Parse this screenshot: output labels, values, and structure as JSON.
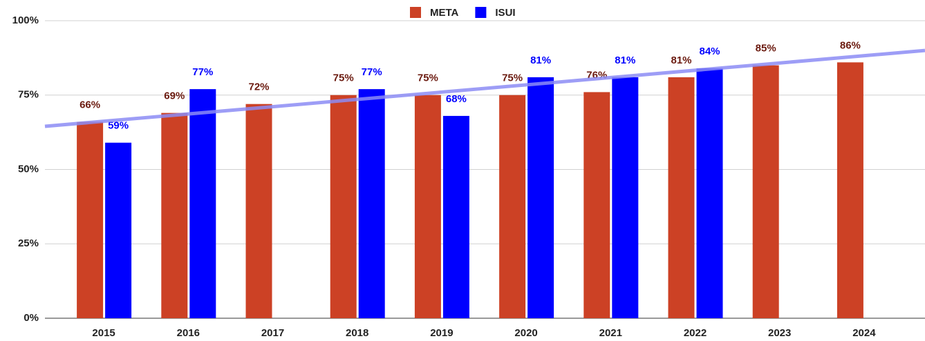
{
  "chart_data": {
    "type": "bar",
    "categories": [
      "2015",
      "2016",
      "2017",
      "2018",
      "2019",
      "2020",
      "2021",
      "2022",
      "2023",
      "2024"
    ],
    "series": [
      {
        "name": "META",
        "color": "#cc4125",
        "label_color": "#6b1a0f",
        "values": [
          66,
          69,
          72,
          75,
          75,
          75,
          76,
          81,
          85,
          86
        ],
        "value_labels": [
          "66%",
          "69%",
          "72%",
          "75%",
          "75%",
          "75%",
          "76%",
          "81%",
          "85%",
          "86%"
        ]
      },
      {
        "name": "ISUI",
        "color": "#0000ff",
        "label_color": "#0000ff",
        "values": [
          59,
          77,
          null,
          77,
          68,
          81,
          81,
          84,
          null,
          null
        ],
        "value_labels": [
          "59%",
          "77%",
          null,
          "77%",
          "68%",
          "81%",
          "81%",
          "84%",
          null,
          null
        ]
      }
    ],
    "trendline": {
      "color": "#8c8cf5",
      "values": [
        64.5,
        90
      ]
    },
    "ylim": [
      0,
      100
    ],
    "yticks": [
      {
        "value": 0,
        "label": "0%"
      },
      {
        "value": 25,
        "label": "25%"
      },
      {
        "value": 50,
        "label": "50%"
      },
      {
        "value": 75,
        "label": "75%"
      },
      {
        "value": 100,
        "label": "100%"
      }
    ],
    "grid": true,
    "legend": "top"
  }
}
